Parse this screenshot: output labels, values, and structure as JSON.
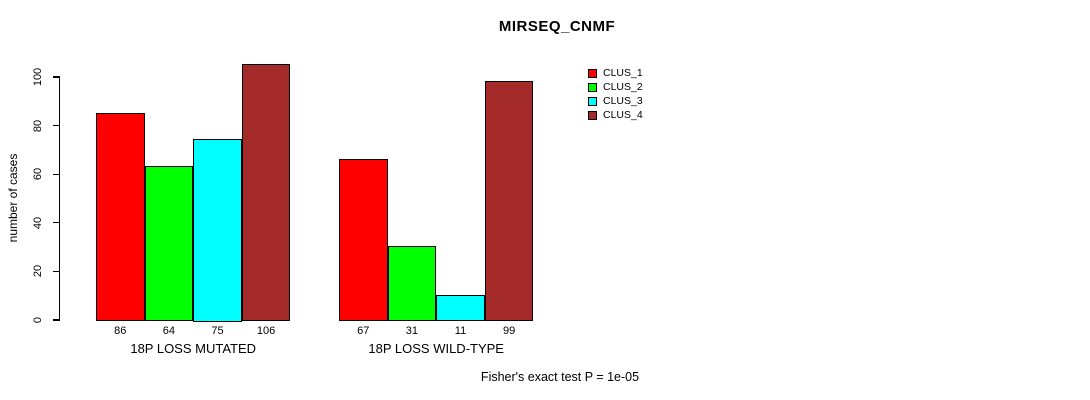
{
  "chart_data": {
    "type": "bar",
    "title": "MIRSEQ_CNMF",
    "xlabel": "",
    "ylabel": "number of cases",
    "ylim": [
      0,
      100
    ],
    "yticks": [
      0,
      20,
      40,
      60,
      80,
      100
    ],
    "grid": false,
    "legend_position": "top-right",
    "bar_value_labels_shown": true,
    "categories": [
      "18P LOSS MUTATED",
      "18P LOSS WILD-TYPE"
    ],
    "series": [
      {
        "name": "CLUS_1",
        "color": "#FF0000",
        "values": [
          86,
          67
        ]
      },
      {
        "name": "CLUS_2",
        "color": "#00FF00",
        "values": [
          64,
          31
        ]
      },
      {
        "name": "CLUS_3",
        "color": "#00FFFF",
        "values": [
          75,
          11
        ]
      },
      {
        "name": "CLUS_4",
        "color": "#A52A2A",
        "values": [
          106,
          99
        ]
      }
    ],
    "annotation": "Fisher's exact test P = 1e-05",
    "bar_border_color": "#000000",
    "background_color": "#FFFFFF"
  }
}
